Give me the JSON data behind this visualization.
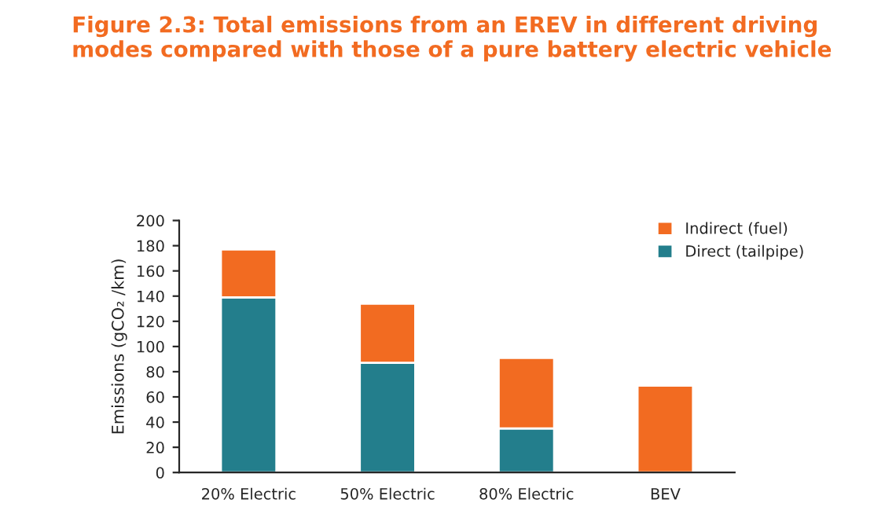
{
  "chart_data": {
    "type": "bar",
    "title": "Figure 2.3: Total emissions from an EREV in different driving modes compared with those of a pure battery electric vehicle",
    "ylabel": "Emissions (gCO₂ /km)",
    "categories": [
      "20% Electric",
      "50% Electric",
      "80% Electric",
      "BEV"
    ],
    "stacked": true,
    "series": [
      {
        "name": "Direct (tailpipe)",
        "color": "#237e8c",
        "values": [
          139,
          87,
          35,
          0
        ]
      },
      {
        "name": "Indirect (fuel)",
        "color": "#f26b21",
        "values": [
          38,
          47,
          56,
          69
        ]
      }
    ],
    "ylim": [
      0,
      200
    ],
    "yticks": [
      0,
      20,
      40,
      60,
      80,
      100,
      120,
      140,
      160,
      180,
      200
    ],
    "grid": false,
    "legend": "top right"
  }
}
